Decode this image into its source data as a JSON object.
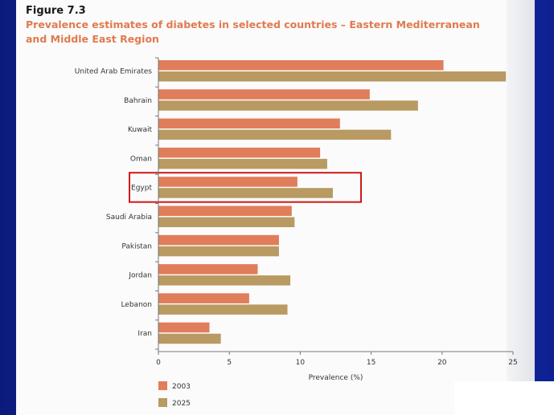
{
  "figure": {
    "label": "Figure 7.3",
    "title": "Prevalence estimates of diabetes in selected countries – Eastern Mediterranean and Middle East Region"
  },
  "colors": {
    "series_2003": "#e07d5a",
    "series_2025": "#b89a62",
    "highlight": "#d01818"
  },
  "chart_data": {
    "type": "bar",
    "orientation": "horizontal",
    "categories": [
      "United Arab Emirates",
      "Bahrain",
      "Kuwait",
      "Oman",
      "Egypt",
      "Saudi Arabia",
      "Pakistan",
      "Jordan",
      "Lebanon",
      "Iran"
    ],
    "series": [
      {
        "name": "2003",
        "values": [
          20.1,
          14.9,
          12.8,
          11.4,
          9.8,
          9.4,
          8.5,
          7.0,
          6.4,
          3.6
        ]
      },
      {
        "name": "2025",
        "values": [
          24.5,
          18.3,
          16.4,
          11.9,
          12.3,
          9.6,
          8.5,
          9.3,
          9.1,
          4.4
        ]
      }
    ],
    "xlabel": "Prevalence (%)",
    "ylabel": "",
    "xlim": [
      0,
      25
    ],
    "xticks": [
      0,
      5,
      10,
      15,
      20,
      25
    ],
    "grid": false,
    "legend_position": "bottom-left",
    "highlighted_category": "Egypt"
  }
}
